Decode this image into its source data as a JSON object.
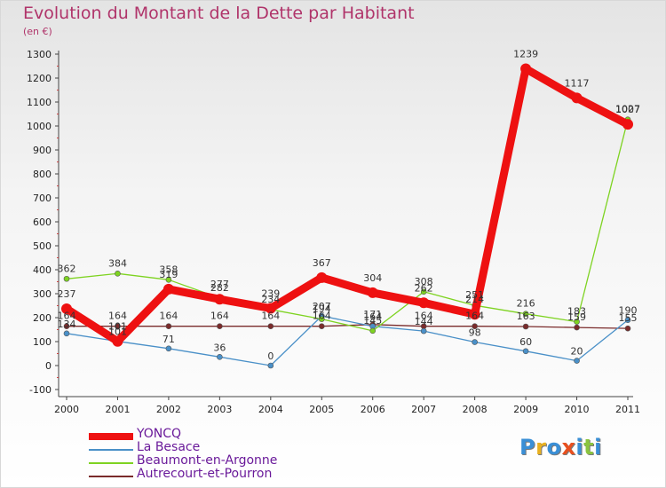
{
  "title": "Evolution du Montant de la Dette par Habitant",
  "unit": "(en €)",
  "logo": {
    "text": "Proxiti",
    "colors": [
      "#3a8fd6",
      "#e8b020",
      "#3a8fd6",
      "#e8501f",
      "#3a8fd6",
      "#8ac43f",
      "#3a8fd6"
    ]
  },
  "chart_data": {
    "type": "line",
    "title": "Evolution du Montant de la Dette par Habitant",
    "ylabel": "(en €)",
    "xlabel": "",
    "x": [
      "2000",
      "2001",
      "2002",
      "2003",
      "2004",
      "2005",
      "2006",
      "2007",
      "2008",
      "2009",
      "2010",
      "2011"
    ],
    "yticks": [
      "-100",
      "0",
      "100",
      "200",
      "300",
      "400",
      "500",
      "600",
      "700",
      "800",
      "900",
      "1000",
      "1100",
      "1200",
      "1300"
    ],
    "ylim": [
      -100,
      1300
    ],
    "grid": false,
    "legend": "bottom-left",
    "series": [
      {
        "name": "YONCQ",
        "color": "#ee1111",
        "values": [
          237,
          101,
          319,
          277,
          239,
          367,
          304,
          262,
          214,
          1239,
          1117,
          1007
        ],
        "labels": [
          "237",
          "101",
          "319",
          "277",
          "239",
          "367",
          "304",
          "262",
          "214",
          "1239",
          "1117",
          "1007"
        ]
      },
      {
        "name": "La Besace",
        "color": "#4a90c8",
        "values": [
          134,
          101,
          71,
          36,
          0,
          207,
          164,
          144,
          98,
          60,
          20,
          190
        ],
        "labels": [
          "134",
          "101",
          "71",
          "36",
          "0",
          "207",
          "164",
          "144",
          "98",
          "60",
          "20",
          "190"
        ]
      },
      {
        "name": "Beaumont-en-Argonne",
        "color": "#7ed321",
        "values": [
          362,
          384,
          358,
          282,
          234,
          194,
          145,
          308,
          251,
          216,
          183,
          1027
        ],
        "labels": [
          "362",
          "384",
          "358",
          "282",
          "234",
          "194",
          "145",
          "308",
          "251",
          "216",
          "183",
          "1027"
        ]
      },
      {
        "name": "Autrecourt-et-Pourron",
        "color": "#7a2b2b",
        "values": [
          164,
          164,
          164,
          164,
          164,
          164,
          171,
          164,
          164,
          163,
          159,
          155
        ],
        "labels": [
          "164",
          "164",
          "164",
          "164",
          "164",
          "164",
          "171",
          "164",
          "164",
          "163",
          "159",
          "155"
        ]
      }
    ]
  }
}
